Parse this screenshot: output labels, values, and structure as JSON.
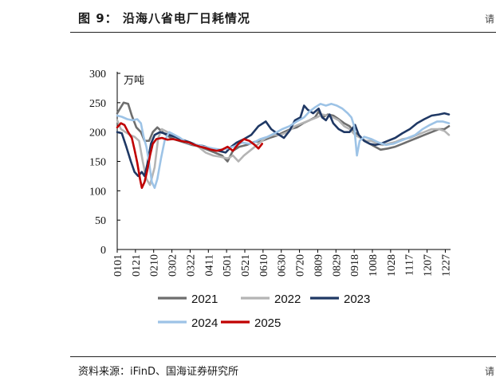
{
  "figure": {
    "title": "图 9：   沿海八省电厂日耗情况",
    "source": "资料来源：iFinD、国海证券研究所",
    "corner_marks": [
      "请",
      "请"
    ]
  },
  "chart_data": {
    "type": "line",
    "unit_label": "万吨",
    "ylim": [
      0,
      300
    ],
    "yticks": [
      0,
      50,
      100,
      150,
      200,
      250,
      300
    ],
    "x_days": [
      1,
      365
    ],
    "x_ticks": [
      {
        "label": "0101",
        "day": 1
      },
      {
        "label": "0121",
        "day": 21
      },
      {
        "label": "0210",
        "day": 41
      },
      {
        "label": "0302",
        "day": 61
      },
      {
        "label": "0322",
        "day": 81
      },
      {
        "label": "0411",
        "day": 101
      },
      {
        "label": "0501",
        "day": 121
      },
      {
        "label": "0521",
        "day": 141
      },
      {
        "label": "0610",
        "day": 161
      },
      {
        "label": "0630",
        "day": 181
      },
      {
        "label": "0720",
        "day": 201
      },
      {
        "label": "0809",
        "day": 221
      },
      {
        "label": "0829",
        "day": 241
      },
      {
        "label": "0918",
        "day": 261
      },
      {
        "label": "1008",
        "day": 281
      },
      {
        "label": "1028",
        "day": 301
      },
      {
        "label": "1117",
        "day": 321
      },
      {
        "label": "1207",
        "day": 341
      },
      {
        "label": "1227",
        "day": 361
      }
    ],
    "series": [
      {
        "name": "2021",
        "color": "#6e6e6e",
        "points": [
          [
            1,
            232
          ],
          [
            8,
            250
          ],
          [
            13,
            248
          ],
          [
            17,
            228
          ],
          [
            22,
            208
          ],
          [
            27,
            200
          ],
          [
            31,
            185
          ],
          [
            36,
            185
          ],
          [
            40,
            200
          ],
          [
            45,
            208
          ],
          [
            52,
            198
          ],
          [
            60,
            190
          ],
          [
            67,
            186
          ],
          [
            75,
            182
          ],
          [
            83,
            178
          ],
          [
            92,
            175
          ],
          [
            100,
            170
          ],
          [
            108,
            165
          ],
          [
            116,
            160
          ],
          [
            122,
            150
          ],
          [
            128,
            168
          ],
          [
            135,
            175
          ],
          [
            143,
            178
          ],
          [
            151,
            183
          ],
          [
            160,
            185
          ],
          [
            168,
            190
          ],
          [
            176,
            194
          ],
          [
            184,
            200
          ],
          [
            191,
            205
          ],
          [
            198,
            208
          ],
          [
            205,
            215
          ],
          [
            212,
            220
          ],
          [
            218,
            225
          ],
          [
            222,
            235
          ],
          [
            226,
            225
          ],
          [
            232,
            230
          ],
          [
            238,
            228
          ],
          [
            244,
            222
          ],
          [
            250,
            215
          ],
          [
            256,
            210
          ],
          [
            261,
            200
          ],
          [
            266,
            195
          ],
          [
            272,
            185
          ],
          [
            278,
            180
          ],
          [
            284,
            175
          ],
          [
            290,
            170
          ],
          [
            298,
            172
          ],
          [
            306,
            175
          ],
          [
            314,
            180
          ],
          [
            322,
            185
          ],
          [
            330,
            190
          ],
          [
            338,
            195
          ],
          [
            346,
            200
          ],
          [
            354,
            205
          ],
          [
            360,
            205
          ],
          [
            365,
            210
          ]
        ]
      },
      {
        "name": "2022",
        "color": "#b4b4b4",
        "points": [
          [
            1,
            220
          ],
          [
            5,
            205
          ],
          [
            10,
            200
          ],
          [
            15,
            195
          ],
          [
            20,
            192
          ],
          [
            25,
            185
          ],
          [
            29,
            150
          ],
          [
            33,
            120
          ],
          [
            37,
            110
          ],
          [
            42,
            140
          ],
          [
            46,
            190
          ],
          [
            50,
            205
          ],
          [
            56,
            200
          ],
          [
            62,
            195
          ],
          [
            68,
            190
          ],
          [
            75,
            185
          ],
          [
            82,
            180
          ],
          [
            90,
            175
          ],
          [
            98,
            165
          ],
          [
            106,
            160
          ],
          [
            114,
            158
          ],
          [
            122,
            155
          ],
          [
            128,
            160
          ],
          [
            134,
            150
          ],
          [
            140,
            160
          ],
          [
            148,
            170
          ],
          [
            156,
            180
          ],
          [
            164,
            190
          ],
          [
            172,
            195
          ],
          [
            180,
            195
          ],
          [
            188,
            200
          ],
          [
            196,
            210
          ],
          [
            204,
            215
          ],
          [
            212,
            220
          ],
          [
            220,
            225
          ],
          [
            226,
            230
          ],
          [
            232,
            228
          ],
          [
            238,
            225
          ],
          [
            244,
            220
          ],
          [
            250,
            210
          ],
          [
            256,
            205
          ],
          [
            262,
            195
          ],
          [
            268,
            190
          ],
          [
            274,
            185
          ],
          [
            280,
            185
          ],
          [
            286,
            180
          ],
          [
            292,
            178
          ],
          [
            298,
            180
          ],
          [
            306,
            183
          ],
          [
            314,
            188
          ],
          [
            322,
            190
          ],
          [
            330,
            195
          ],
          [
            338,
            200
          ],
          [
            346,
            205
          ],
          [
            354,
            205
          ],
          [
            360,
            202
          ],
          [
            365,
            195
          ]
        ]
      },
      {
        "name": "2023",
        "color": "#1f3864",
        "points": [
          [
            1,
            200
          ],
          [
            6,
            198
          ],
          [
            11,
            175
          ],
          [
            16,
            150
          ],
          [
            20,
            132
          ],
          [
            24,
            125
          ],
          [
            28,
            132
          ],
          [
            31,
            125
          ],
          [
            34,
            145
          ],
          [
            38,
            180
          ],
          [
            42,
            195
          ],
          [
            48,
            200
          ],
          [
            56,
            196
          ],
          [
            64,
            192
          ],
          [
            72,
            187
          ],
          [
            80,
            183
          ],
          [
            88,
            178
          ],
          [
            96,
            176
          ],
          [
            104,
            172
          ],
          [
            112,
            168
          ],
          [
            120,
            165
          ],
          [
            126,
            175
          ],
          [
            132,
            182
          ],
          [
            140,
            188
          ],
          [
            148,
            195
          ],
          [
            156,
            210
          ],
          [
            164,
            218
          ],
          [
            170,
            205
          ],
          [
            176,
            198
          ],
          [
            184,
            190
          ],
          [
            190,
            202
          ],
          [
            196,
            220
          ],
          [
            202,
            225
          ],
          [
            206,
            245
          ],
          [
            210,
            238
          ],
          [
            216,
            232
          ],
          [
            222,
            240
          ],
          [
            226,
            225
          ],
          [
            230,
            220
          ],
          [
            234,
            230
          ],
          [
            238,
            215
          ],
          [
            244,
            205
          ],
          [
            250,
            200
          ],
          [
            256,
            200
          ],
          [
            262,
            212
          ],
          [
            266,
            195
          ],
          [
            272,
            185
          ],
          [
            278,
            180
          ],
          [
            284,
            178
          ],
          [
            290,
            180
          ],
          [
            298,
            185
          ],
          [
            306,
            190
          ],
          [
            314,
            198
          ],
          [
            322,
            205
          ],
          [
            330,
            215
          ],
          [
            338,
            222
          ],
          [
            346,
            228
          ],
          [
            354,
            230
          ],
          [
            360,
            232
          ],
          [
            365,
            230
          ]
        ]
      },
      {
        "name": "2024",
        "color": "#9dc3e6",
        "points": [
          [
            1,
            228
          ],
          [
            6,
            226
          ],
          [
            12,
            222
          ],
          [
            18,
            220
          ],
          [
            23,
            222
          ],
          [
            27,
            215
          ],
          [
            30,
            192
          ],
          [
            33,
            175
          ],
          [
            36,
            148
          ],
          [
            39,
            115
          ],
          [
            42,
            105
          ],
          [
            45,
            120
          ],
          [
            49,
            155
          ],
          [
            53,
            185
          ],
          [
            58,
            200
          ],
          [
            64,
            195
          ],
          [
            70,
            190
          ],
          [
            76,
            183
          ],
          [
            82,
            180
          ],
          [
            88,
            178
          ],
          [
            94,
            176
          ],
          [
            100,
            174
          ],
          [
            106,
            172
          ],
          [
            114,
            170
          ],
          [
            122,
            172
          ],
          [
            130,
            176
          ],
          [
            138,
            182
          ],
          [
            146,
            180
          ],
          [
            152,
            183
          ],
          [
            158,
            188
          ],
          [
            166,
            192
          ],
          [
            174,
            198
          ],
          [
            182,
            205
          ],
          [
            190,
            210
          ],
          [
            198,
            218
          ],
          [
            206,
            225
          ],
          [
            212,
            235
          ],
          [
            218,
            242
          ],
          [
            224,
            248
          ],
          [
            230,
            245
          ],
          [
            236,
            248
          ],
          [
            242,
            245
          ],
          [
            248,
            240
          ],
          [
            254,
            232
          ],
          [
            258,
            225
          ],
          [
            261,
            210
          ],
          [
            264,
            160
          ],
          [
            267,
            185
          ],
          [
            272,
            192
          ],
          [
            280,
            188
          ],
          [
            288,
            182
          ],
          [
            296,
            178
          ],
          [
            304,
            180
          ],
          [
            312,
            185
          ],
          [
            320,
            190
          ],
          [
            328,
            195
          ],
          [
            336,
            205
          ],
          [
            344,
            212
          ],
          [
            352,
            218
          ],
          [
            358,
            218
          ],
          [
            365,
            215
          ]
        ]
      },
      {
        "name": "2025",
        "color": "#c00000",
        "points": [
          [
            1,
            208
          ],
          [
            5,
            215
          ],
          [
            9,
            212
          ],
          [
            13,
            200
          ],
          [
            17,
            190
          ],
          [
            20,
            170
          ],
          [
            23,
            148
          ],
          [
            26,
            120
          ],
          [
            28,
            105
          ],
          [
            31,
            115
          ],
          [
            34,
            135
          ],
          [
            37,
            160
          ],
          [
            40,
            180
          ],
          [
            44,
            188
          ],
          [
            50,
            190
          ],
          [
            56,
            187
          ],
          [
            62,
            188
          ],
          [
            68,
            186
          ],
          [
            74,
            184
          ],
          [
            80,
            182
          ],
          [
            86,
            178
          ],
          [
            92,
            175
          ],
          [
            98,
            173
          ],
          [
            104,
            170
          ],
          [
            110,
            168
          ],
          [
            116,
            170
          ],
          [
            122,
            175
          ],
          [
            128,
            168
          ],
          [
            134,
            180
          ],
          [
            140,
            188
          ],
          [
            146,
            185
          ],
          [
            152,
            178
          ],
          [
            156,
            172
          ],
          [
            160,
            180
          ]
        ]
      }
    ],
    "legend": [
      {
        "name": "2021",
        "color": "#6e6e6e"
      },
      {
        "name": "2022",
        "color": "#b4b4b4"
      },
      {
        "name": "2023",
        "color": "#1f3864"
      },
      {
        "name": "2024",
        "color": "#9dc3e6"
      },
      {
        "name": "2025",
        "color": "#c00000"
      }
    ]
  }
}
